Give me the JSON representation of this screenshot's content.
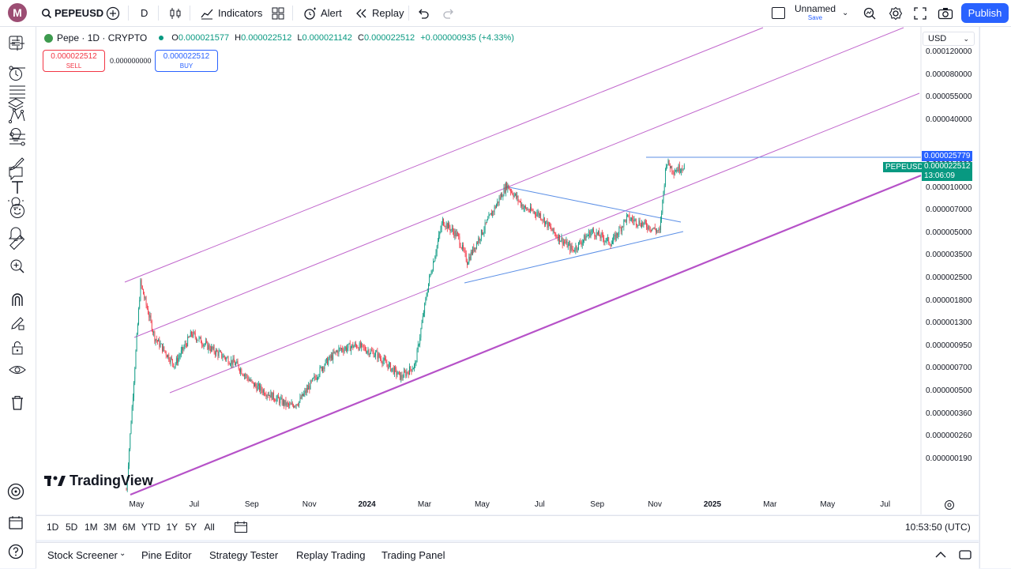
{
  "toolbar": {
    "avatar_letter": "M",
    "symbol": "PEPEUSD",
    "interval": "D",
    "indicators_label": "Indicators",
    "alert_label": "Alert",
    "replay_label": "Replay",
    "layout_name": "Unnamed",
    "layout_status": "Save",
    "publish_label": "Publish"
  },
  "legend": {
    "title": "Pepe · 1D · CRYPTO",
    "open_label": "O",
    "open": "0.000021577",
    "high_label": "H",
    "high": "0.000022512",
    "low_label": "L",
    "low": "0.000021142",
    "close_label": "C",
    "close": "0.000022512",
    "change": "+0.000000935 (+4.33%)"
  },
  "trade": {
    "sell_price": "0.000022512",
    "sell_label": "SELL",
    "spread": "0.000000000",
    "buy_price": "0.000022512",
    "buy_label": "BUY"
  },
  "currency": "USD",
  "y_axis": [
    "0.000120000",
    "0.000080000",
    "0.000055000",
    "0.000040000",
    "0.000025779",
    "0.000014000",
    "0.000010000",
    "0.000007000",
    "0.000005000",
    "0.000003500",
    "0.000002500",
    "0.000001800",
    "0.000001300",
    "0.000000950",
    "0.000000700",
    "0.000000500",
    "0.000000360",
    "0.000000260",
    "0.000000190"
  ],
  "x_axis": [
    "May",
    "Jul",
    "Sep",
    "Nov",
    "2024",
    "Mar",
    "May",
    "Jul",
    "Sep",
    "Nov",
    "2025",
    "Mar",
    "May",
    "Jul"
  ],
  "price_tags": {
    "level": "0.000025779",
    "symbol": "PEPEUSD",
    "last": "0.000022512",
    "countdown": "13:06:09"
  },
  "watermark": "TradingView",
  "ranges": [
    "1D",
    "5D",
    "1M",
    "3M",
    "6M",
    "YTD",
    "1Y",
    "5Y",
    "All"
  ],
  "clock": "10:53:50 (UTC)",
  "panels": [
    "Stock Screener",
    "Pine Editor",
    "Strategy Tester",
    "Replay Trading",
    "Trading Panel"
  ],
  "colors": {
    "up": "#089981",
    "down": "#f23645",
    "channel": "#c066cc",
    "trendline": "#5b8fe6",
    "accent": "#2962ff"
  },
  "chart_data": {
    "type": "candlestick",
    "symbol": "PEPEUSD",
    "interval": "1D",
    "scale": "log",
    "ylim": [
      1.9e-07,
      0.00012
    ],
    "x_start": "2023-05",
    "x_end": "2024-12",
    "series": [
      {
        "name": "price_path",
        "x": [
          "2023-04-20",
          "2023-05-05",
          "2023-05-20",
          "2023-06-10",
          "2023-06-28",
          "2023-07-20",
          "2023-08-15",
          "2023-09-01",
          "2023-09-15",
          "2023-10-10",
          "2023-10-20",
          "2023-11-15",
          "2023-12-01",
          "2023-12-20",
          "2024-01-10",
          "2024-02-05",
          "2024-02-20",
          "2024-03-05",
          "2024-03-20",
          "2024-04-05",
          "2024-04-15",
          "2024-05-05",
          "2024-05-27",
          "2024-06-15",
          "2024-07-01",
          "2024-07-15",
          "2024-08-05",
          "2024-08-25",
          "2024-09-15",
          "2024-10-01",
          "2024-10-20",
          "2024-11-05",
          "2024-11-12",
          "2024-11-20",
          "2024-12-01"
        ],
        "y": [
          1.9e-07,
          4e-06,
          1.8e-06,
          1.2e-06,
          1.9e-06,
          1.5e-06,
          1.2e-06,
          9e-07,
          8e-07,
          6.5e-07,
          7e-07,
          1.2e-06,
          1.5e-06,
          1.6e-06,
          1.4e-06,
          1e-06,
          1.2e-06,
          4e-06,
          1e-05,
          8e-06,
          5.5e-06,
          9.5e-06,
          1.7e-05,
          1.2e-05,
          1.1e-05,
          8.5e-06,
          6.5e-06,
          8.6e-06,
          7.2e-06,
          1.05e-05,
          9.5e-06,
          8.5e-06,
          2.4e-05,
          2.1e-05,
          2.2512e-05
        ]
      }
    ]
  }
}
